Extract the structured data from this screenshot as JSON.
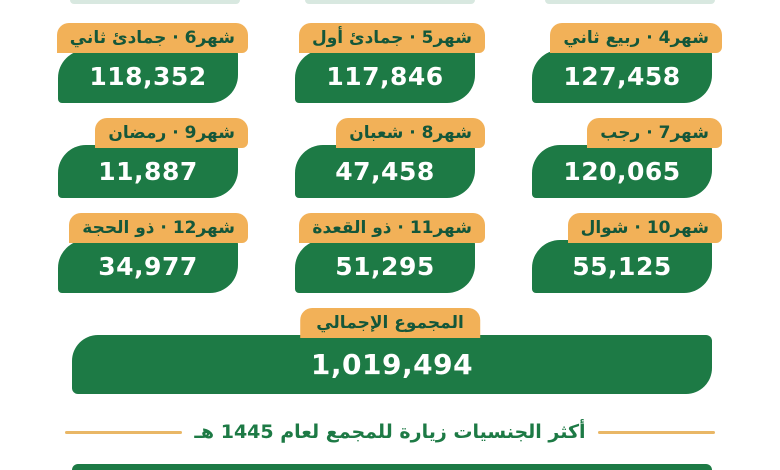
{
  "colors": {
    "green": "#1d7a45",
    "orange": "#f2b158",
    "label_text": "#14573a",
    "value_text": "#ffffff",
    "footer_text": "#1d7a45",
    "footer_line": "#e9b766",
    "top_strip": "#d8e8e0"
  },
  "cards": [
    {
      "label": "شهر4 · ربيع ثاني",
      "value": "127,458"
    },
    {
      "label": "شهر5 · جمادئ أول",
      "value": "117,846"
    },
    {
      "label": "شهر6 · جمادئ ثاني",
      "value": "118,352"
    },
    {
      "label": "شهر7 · رجب",
      "value": "120,065"
    },
    {
      "label": "شهر8 · شعبان",
      "value": "47,458"
    },
    {
      "label": "شهر9 · رمضان",
      "value": "11,887"
    },
    {
      "label": "شهر10 · شوال",
      "value": "55,125"
    },
    {
      "label": "شهر11 · ذو القعدة",
      "value": "51,295"
    },
    {
      "label": "شهر12 · ذو الحجة",
      "value": "34,977"
    }
  ],
  "total": {
    "label": "المجموع الإجمالي",
    "value": "1,019,494"
  },
  "footer": {
    "heading": "أكثر الجنسيات زيارة للمجمع لعام 1445 هـ"
  },
  "chart_data": {
    "type": "table",
    "categories": [
      "شهر4 · ربيع ثاني",
      "شهر5 · جمادئ أول",
      "شهر6 · جمادئ ثاني",
      "شهر7 · رجب",
      "شهر8 · شعبان",
      "شهر9 · رمضان",
      "شهر10 · شوال",
      "شهر11 · ذو القعدة",
      "شهر12 · ذو الحجة"
    ],
    "values": [
      127458,
      117846,
      118352,
      120065,
      47458,
      11887,
      55125,
      51295,
      34977
    ],
    "total_label": "المجموع الإجمالي",
    "total_value": 1019494,
    "section_heading": "أكثر الجنسيات زيارة للمجمع لعام 1445 هـ",
    "legend_position": "none",
    "grid": false
  }
}
